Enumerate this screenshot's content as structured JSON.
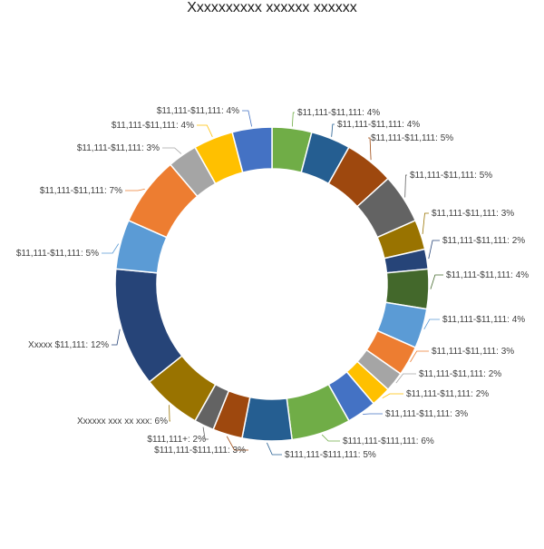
{
  "chart_data": {
    "type": "pie",
    "title": "Xxxxxxxxxx xxxxxx xxxxxx",
    "slices": [
      {
        "label": "$11,111-$11,111: 4%",
        "value": 4,
        "color": "#70AD47"
      },
      {
        "label": "$11,111-$11,111: 4%",
        "value": 4,
        "color": "#255E91"
      },
      {
        "label": "$11,111-$11,111: 5%",
        "value": 5,
        "color": "#9E480E"
      },
      {
        "label": "$11,111-$11,111: 5%",
        "value": 5,
        "color": "#636363"
      },
      {
        "label": "$11,111-$11,111: 3%",
        "value": 3,
        "color": "#997300"
      },
      {
        "label": "$11,111-$11,111: 2%",
        "value": 2,
        "color": "#264478"
      },
      {
        "label": "$11,111-$11,111: 4%",
        "value": 4,
        "color": "#43682B"
      },
      {
        "label": "$11,111-$11,111: 4%",
        "value": 4,
        "color": "#5B9BD5"
      },
      {
        "label": "$11,111-$11,111: 3%",
        "value": 3,
        "color": "#ED7D31"
      },
      {
        "label": "$11,111-$11,111: 2%",
        "value": 2,
        "color": "#A5A5A5"
      },
      {
        "label": "$11,111-$11,111: 2%",
        "value": 2,
        "color": "#FFC000"
      },
      {
        "label": "$11,111-$11,111: 3%",
        "value": 3,
        "color": "#4472C4"
      },
      {
        "label": "$111,111-$111,111: 6%",
        "value": 6,
        "color": "#70AD47"
      },
      {
        "label": "$111,111-$111,111: 5%",
        "value": 5,
        "color": "#255E91"
      },
      {
        "label": "$111,111-$111,111: 3%",
        "value": 3,
        "color": "#9E480E"
      },
      {
        "label": "$111,111+: 2%",
        "value": 2,
        "color": "#636363"
      },
      {
        "label": "Xxxxxx xxx xx xxx: 6%",
        "value": 6,
        "color": "#997300"
      },
      {
        "label": "Xxxxx $11,111: 12%",
        "value": 12,
        "color": "#264478"
      },
      {
        "label": "$11,111-$11,111: 5%",
        "value": 5,
        "color": "#5B9BD5"
      },
      {
        "label": "$11,111-$11,111: 7%",
        "value": 7,
        "color": "#ED7D31"
      },
      {
        "label": "$11,111-$11,111: 3%",
        "value": 3,
        "color": "#A5A5A5"
      },
      {
        "label": "$11,111-$11,111: 4%",
        "value": 4,
        "color": "#FFC000"
      },
      {
        "label": "$11,111-$11,111: 4%",
        "value": 4,
        "color": "#4472C4"
      }
    ]
  }
}
